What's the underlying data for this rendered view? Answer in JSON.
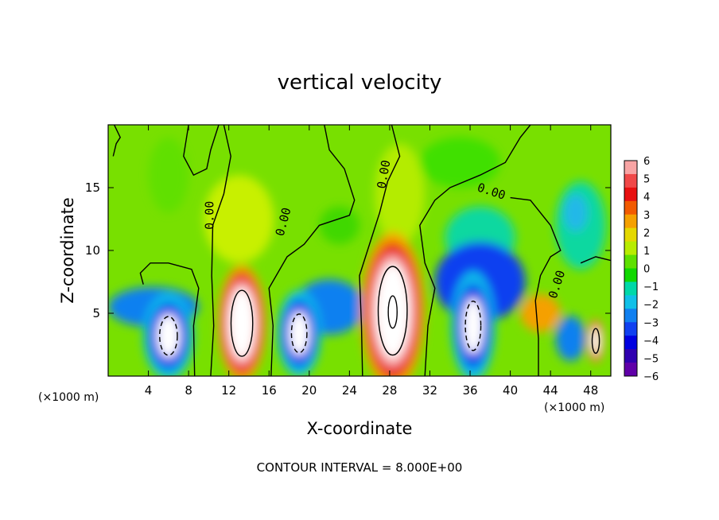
{
  "chart_data": {
    "type": "heatmap",
    "title": "vertical velocity",
    "xlabel": "X-coordinate",
    "ylabel": "Z-coordinate",
    "x_unit_left": "(×1000 m)",
    "x_unit_right": "(×1000 m)",
    "footer": "CONTOUR INTERVAL = 8.000E+00",
    "xlim": [
      0,
      50
    ],
    "ylim": [
      0,
      20
    ],
    "x_ticks": [
      4,
      8,
      12,
      16,
      20,
      24,
      28,
      32,
      36,
      40,
      44,
      48
    ],
    "y_ticks": [
      5,
      10,
      15
    ],
    "colorbar": {
      "min": -6,
      "max": 6,
      "ticks": [
        6,
        5,
        4,
        3,
        2,
        1,
        0,
        -1,
        -2,
        -3,
        -4,
        -5,
        -6
      ],
      "colors": [
        "#f8a4a4",
        "#f04848",
        "#e81010",
        "#f25a00",
        "#f5a000",
        "#e4d800",
        "#b8ec00",
        "#5ee000",
        "#10d800",
        "#00d8a8",
        "#10c0e8",
        "#1080f0",
        "#1040f0",
        "#0000e0",
        "#3000b0",
        "#6000a8"
      ]
    },
    "contour_labels": [
      {
        "text": "0.00",
        "x": 10.5,
        "y": 12.8,
        "angle": -90
      },
      {
        "text": "0.00",
        "x": 17.8,
        "y": 12.2,
        "angle": -75
      },
      {
        "text": "0.00",
        "x": 27.8,
        "y": 16.0,
        "angle": -80
      },
      {
        "text": "0.00",
        "x": 38.0,
        "y": 14.4,
        "angle": 18
      },
      {
        "text": "0.00",
        "x": 45.0,
        "y": 7.2,
        "angle": -72
      }
    ],
    "cells": [
      {
        "x": 6.0,
        "z": 3.2,
        "w": 1.6,
        "h": 2.2,
        "peak": -10,
        "sign": "down"
      },
      {
        "x": 13.3,
        "z": 4.2,
        "w": 1.5,
        "h": 3.2,
        "peak": 10,
        "sign": "up"
      },
      {
        "x": 19.0,
        "z": 3.4,
        "w": 1.4,
        "h": 2.2,
        "peak": -9,
        "sign": "down"
      },
      {
        "x": 28.3,
        "z": 5.2,
        "w": 2.0,
        "h": 4.3,
        "peak": 16,
        "sign": "up"
      },
      {
        "x": 36.3,
        "z": 4.0,
        "w": 1.4,
        "h": 2.8,
        "peak": -10,
        "sign": "down"
      },
      {
        "x": 48.5,
        "z": 2.8,
        "w": 0.5,
        "h": 1.2,
        "peak": 8,
        "sign": "up"
      }
    ]
  }
}
